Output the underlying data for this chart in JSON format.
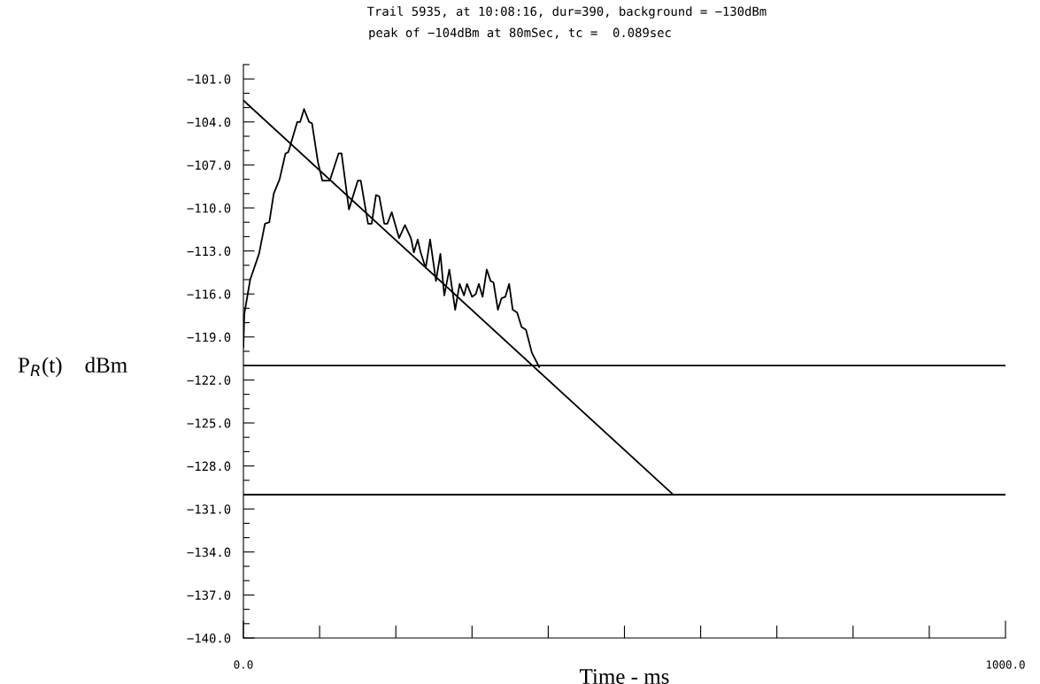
{
  "chart_data": {
    "type": "line",
    "title": "Trail 5935, at 10:08:16, dur=390, background = −130dBm",
    "subtitle": "peak of −104dBm at 80mSec, tc =  0.089sec",
    "xlabel": "Time - ms",
    "ylabel": "P$_{R}$(t)    dBm",
    "xlim": [
      0,
      1000
    ],
    "ylim": [
      -140,
      -100
    ],
    "xticks": [
      {
        "value": 0,
        "label": "0.0"
      },
      {
        "value": 100,
        "label": null
      },
      {
        "value": 200,
        "label": null
      },
      {
        "value": 300,
        "label": null
      },
      {
        "value": 400,
        "label": null
      },
      {
        "value": 500,
        "label": null
      },
      {
        "value": 600,
        "label": null
      },
      {
        "value": 700,
        "label": null
      },
      {
        "value": 800,
        "label": null
      },
      {
        "value": 900,
        "label": null
      },
      {
        "value": 1000,
        "label": "1000.0"
      }
    ],
    "yticks": [
      {
        "value": -140,
        "label": "−140.0"
      },
      {
        "value": -139,
        "label": null
      },
      {
        "value": -138,
        "label": null
      },
      {
        "value": -137,
        "label": "−137.0"
      },
      {
        "value": -136,
        "label": null
      },
      {
        "value": -135,
        "label": null
      },
      {
        "value": -134,
        "label": "−134.0"
      },
      {
        "value": -133,
        "label": null
      },
      {
        "value": -132,
        "label": null
      },
      {
        "value": -131,
        "label": "−131.0"
      },
      {
        "value": -130,
        "label": null
      },
      {
        "value": -129,
        "label": null
      },
      {
        "value": -128,
        "label": "−128.0"
      },
      {
        "value": -127,
        "label": null
      },
      {
        "value": -126,
        "label": null
      },
      {
        "value": -125,
        "label": "−125.0"
      },
      {
        "value": -124,
        "label": null
      },
      {
        "value": -123,
        "label": null
      },
      {
        "value": -122,
        "label": "−122.0"
      },
      {
        "value": -121,
        "label": null
      },
      {
        "value": -120,
        "label": null
      },
      {
        "value": -119,
        "label": "−119.0"
      },
      {
        "value": -118,
        "label": null
      },
      {
        "value": -117,
        "label": null
      },
      {
        "value": -116,
        "label": "−116.0"
      },
      {
        "value": -115,
        "label": null
      },
      {
        "value": -114,
        "label": null
      },
      {
        "value": -113,
        "label": "−113.0"
      },
      {
        "value": -112,
        "label": null
      },
      {
        "value": -111,
        "label": null
      },
      {
        "value": -110,
        "label": "−110.0"
      },
      {
        "value": -109,
        "label": null
      },
      {
        "value": -108,
        "label": null
      },
      {
        "value": -107,
        "label": "−107.0"
      },
      {
        "value": -106,
        "label": null
      },
      {
        "value": -105,
        "label": null
      },
      {
        "value": -104,
        "label": "−104.0"
      },
      {
        "value": -103,
        "label": null
      },
      {
        "value": -102,
        "label": null
      },
      {
        "value": -101,
        "label": "−101.0"
      },
      {
        "value": -100,
        "label": null
      }
    ],
    "grid": false,
    "legend": false,
    "marker": "none",
    "line_style": "solid",
    "series": [
      {
        "color": "#000000",
        "x": [
          0,
          1.2,
          8.9,
          20.5,
          28.3,
          34,
          39.8,
          47.5,
          55.2,
          59,
          70.7,
          74.5,
          79.6,
          86.2,
          90,
          97.8,
          103.6,
          113.3,
          124.9,
          128.8,
          138.5,
          150.1,
          154,
          163.6,
          168.3,
          174,
          178.3,
          184.9,
          188.8,
          194.6,
          204.3,
          212,
          219.8,
          223.7,
          228.7,
          232.6,
          239.2,
          245,
          252.7,
          258.5,
          263.6,
          270.2,
          277.9,
          283.7,
          289.5,
          293.4,
          300,
          305,
          308.9,
          313.9,
          319.3,
          324.4,
          328.2,
          334,
          338.7,
          343.7,
          348.7,
          353.4,
          359.2,
          365,
          370.8,
          378.5,
          388.2
        ],
        "values": [
          -119.7,
          -117.4,
          -115.0,
          -113.2,
          -111.1,
          -111.0,
          -109.0,
          -108.0,
          -106.2,
          -106.1,
          -104.0,
          -104.0,
          -103.1,
          -104.0,
          -104.1,
          -106.8,
          -108.1,
          -108.1,
          -106.2,
          -106.2,
          -110.1,
          -108.1,
          -108.1,
          -111.1,
          -111.1,
          -109.1,
          -109.2,
          -111.1,
          -111.1,
          -110.3,
          -112.1,
          -111.2,
          -112.1,
          -113.1,
          -112.2,
          -113.1,
          -114.2,
          -112.2,
          -115.1,
          -113.2,
          -116.1,
          -114.3,
          -117.1,
          -115.3,
          -116.1,
          -115.3,
          -116.2,
          -116.0,
          -115.3,
          -116.2,
          -114.3,
          -115.1,
          -115.2,
          -117.1,
          -116.3,
          -116.2,
          -115.3,
          -117.1,
          -117.3,
          -118.3,
          -118.5,
          -120.1,
          -121.1
        ]
      },
      {
        "color": "#000000",
        "x": [
          0,
          564
        ],
        "values": [
          -102.5,
          -130
        ]
      }
    ],
    "ref_lines": [
      {
        "axis": "y",
        "value": -121,
        "color": "#000000"
      },
      {
        "axis": "y",
        "value": -130,
        "color": "#000000"
      }
    ]
  }
}
